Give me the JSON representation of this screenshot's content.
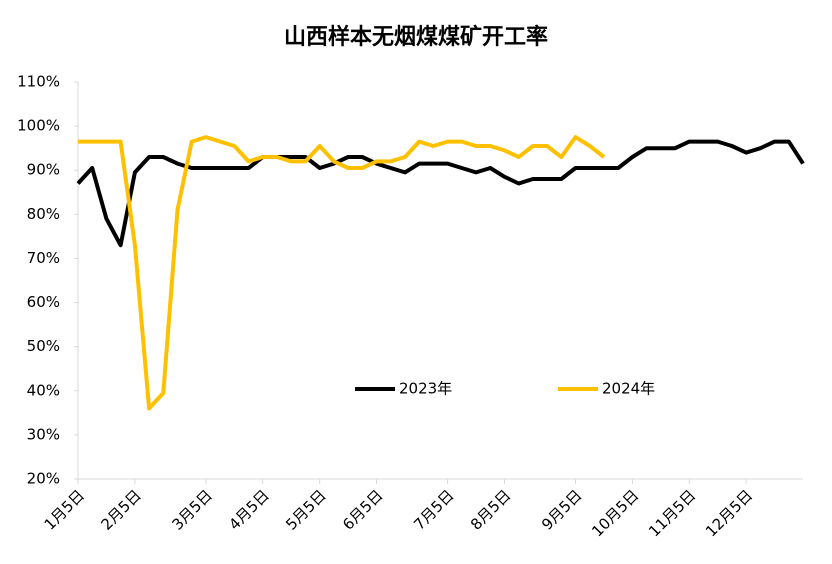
{
  "chart_data": {
    "type": "line",
    "title": "山西样本无烟煤煤矿开工率",
    "categories": [
      "1月5日",
      null,
      null,
      null,
      "2月5日",
      null,
      null,
      null,
      null,
      "3月5日",
      null,
      null,
      null,
      "4月5日",
      null,
      null,
      null,
      "5月5日",
      null,
      null,
      null,
      "6月5日",
      null,
      null,
      null,
      null,
      "7月5日",
      null,
      null,
      null,
      "8月5日",
      null,
      null,
      null,
      null,
      "9月5日",
      null,
      null,
      null,
      "10月5日",
      null,
      null,
      null,
      "11月5日",
      null,
      null,
      null,
      "12月5日",
      null,
      null,
      null,
      null
    ],
    "series": [
      {
        "name": "2023年",
        "color": "#000000",
        "values": [
          87,
          90.5,
          79,
          73,
          89.5,
          93,
          93,
          91.5,
          90.5,
          90.5,
          90.5,
          90.5,
          90.5,
          93,
          93,
          93,
          93,
          90.5,
          91.5,
          93,
          93,
          91.5,
          90.5,
          89.5,
          91.5,
          91.5,
          91.5,
          90.5,
          89.5,
          90.5,
          88.5,
          87,
          88,
          88,
          88,
          90.5,
          90.5,
          90.5,
          90.5,
          93,
          95,
          95,
          95,
          96.5,
          96.5,
          96.5,
          95.5,
          94,
          95,
          96.5,
          96.5,
          91.5
        ]
      },
      {
        "name": "2024年",
        "color": "#ffc000",
        "values": [
          96.5,
          96.5,
          96.5,
          96.5,
          73,
          36,
          39.5,
          81,
          96.5,
          97.5,
          96.5,
          95.5,
          92,
          93,
          93,
          92,
          92,
          95.5,
          92,
          90.5,
          90.5,
          92,
          92,
          93,
          96.5,
          95.5,
          96.5,
          96.5,
          95.5,
          95.5,
          94.5,
          93,
          95.5,
          95.5,
          93,
          97.5,
          95.5,
          93,
          null,
          null,
          null,
          null,
          null,
          null,
          null,
          null,
          null,
          null,
          null,
          null,
          null,
          null
        ]
      }
    ],
    "ylim": [
      20,
      110
    ],
    "yticks": [
      {
        "value": 20,
        "label": "20%"
      },
      {
        "value": 30,
        "label": "30%"
      },
      {
        "value": 40,
        "label": "40%"
      },
      {
        "value": 50,
        "label": "50%"
      },
      {
        "value": 60,
        "label": "60%"
      },
      {
        "value": 70,
        "label": "70%"
      },
      {
        "value": 80,
        "label": "80%"
      },
      {
        "value": 90,
        "label": "90%"
      },
      {
        "value": 100,
        "label": "100%"
      },
      {
        "value": 110,
        "label": "110%"
      }
    ],
    "grid": false
  }
}
